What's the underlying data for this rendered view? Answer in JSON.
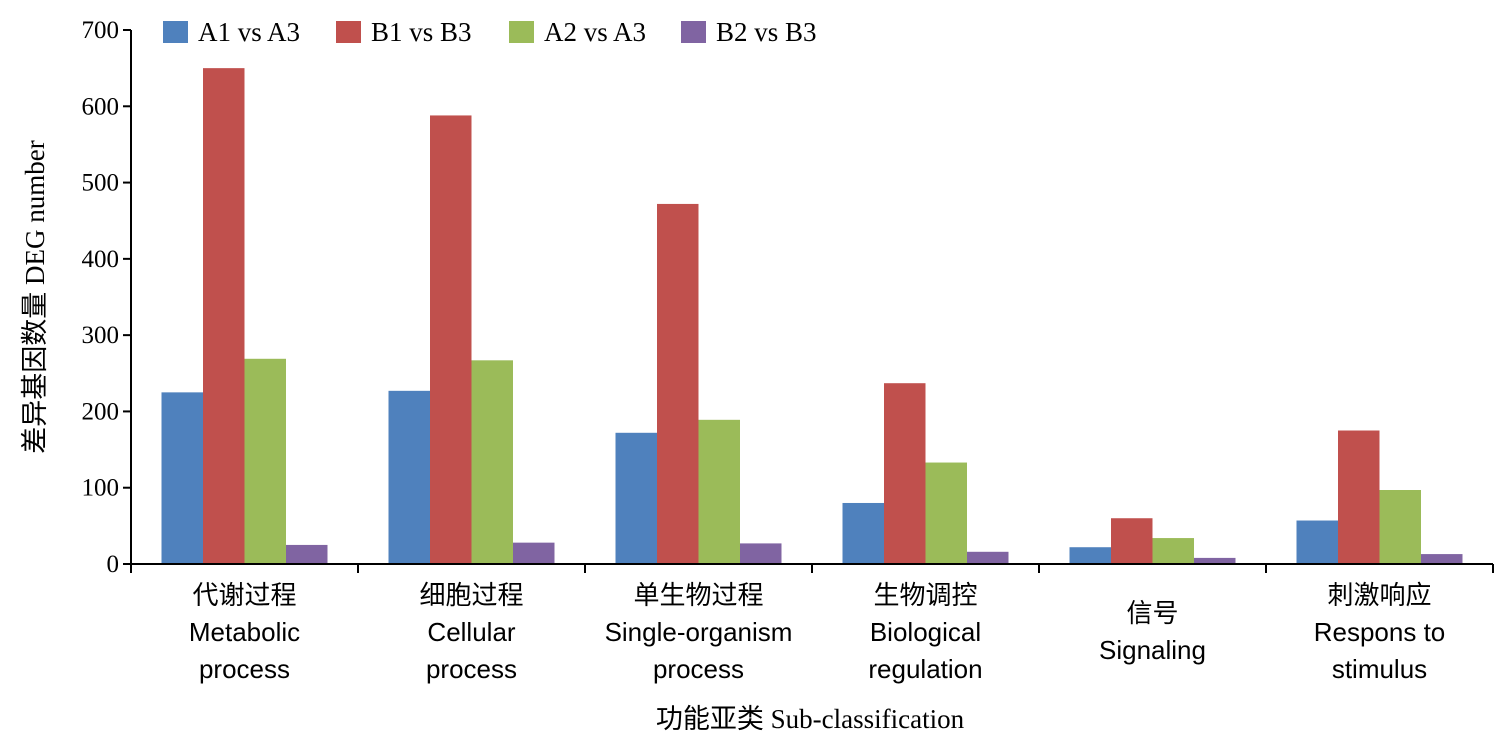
{
  "chart_data": {
    "type": "bar",
    "ylabel": "差异基因数量 DEG number",
    "xlabel": "功能亚类 Sub-classification",
    "ylim": [
      0,
      700
    ],
    "yticks": [
      0,
      100,
      200,
      300,
      400,
      500,
      600,
      700
    ],
    "grid": false,
    "legend_position": "top",
    "categories": [
      {
        "cn": "代谢过程",
        "en": [
          "Metabolic",
          "process"
        ]
      },
      {
        "cn": "细胞过程",
        "en": [
          "Cellular",
          "process"
        ]
      },
      {
        "cn": "单生物过程",
        "en": [
          "Single-organism",
          "process"
        ]
      },
      {
        "cn": "生物调控",
        "en": [
          "Biological",
          "regulation"
        ]
      },
      {
        "cn": "信号",
        "en": [
          "Signaling"
        ]
      },
      {
        "cn": "刺激响应",
        "en": [
          "Respons to",
          "stimulus"
        ]
      }
    ],
    "series": [
      {
        "name": "A1 vs A3",
        "color": "#4F81BD",
        "values": [
          225,
          227,
          172,
          80,
          22,
          57
        ]
      },
      {
        "name": "B1 vs B3",
        "color": "#C0504D",
        "values": [
          650,
          588,
          472,
          237,
          60,
          175
        ]
      },
      {
        "name": "A2 vs A3",
        "color": "#9BBB59",
        "values": [
          269,
          267,
          189,
          133,
          34,
          97
        ]
      },
      {
        "name": "B2 vs B3",
        "color": "#8064A2",
        "values": [
          25,
          28,
          27,
          16,
          8,
          13
        ]
      }
    ]
  }
}
